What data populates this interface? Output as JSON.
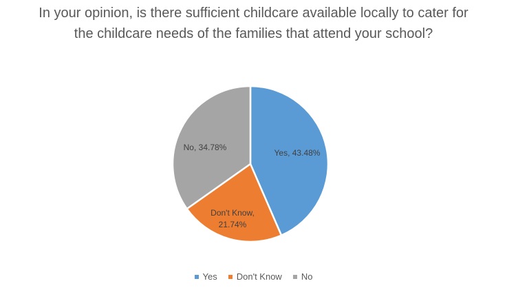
{
  "chart_data": {
    "type": "pie",
    "title": "In your opinion, is there sufficient childcare available locally to cater for the childcare needs of the families that attend your school?",
    "categories": [
      "Yes",
      "Don't Know",
      "No"
    ],
    "values": [
      43.48,
      21.74,
      34.78
    ],
    "labels": [
      "Yes, 43.48%",
      "Don't Know,",
      "21.74%",
      "No, 34.78%"
    ],
    "colors": [
      "#5B9BD5",
      "#ED7D31",
      "#A5A5A5"
    ],
    "legend_position": "bottom"
  }
}
